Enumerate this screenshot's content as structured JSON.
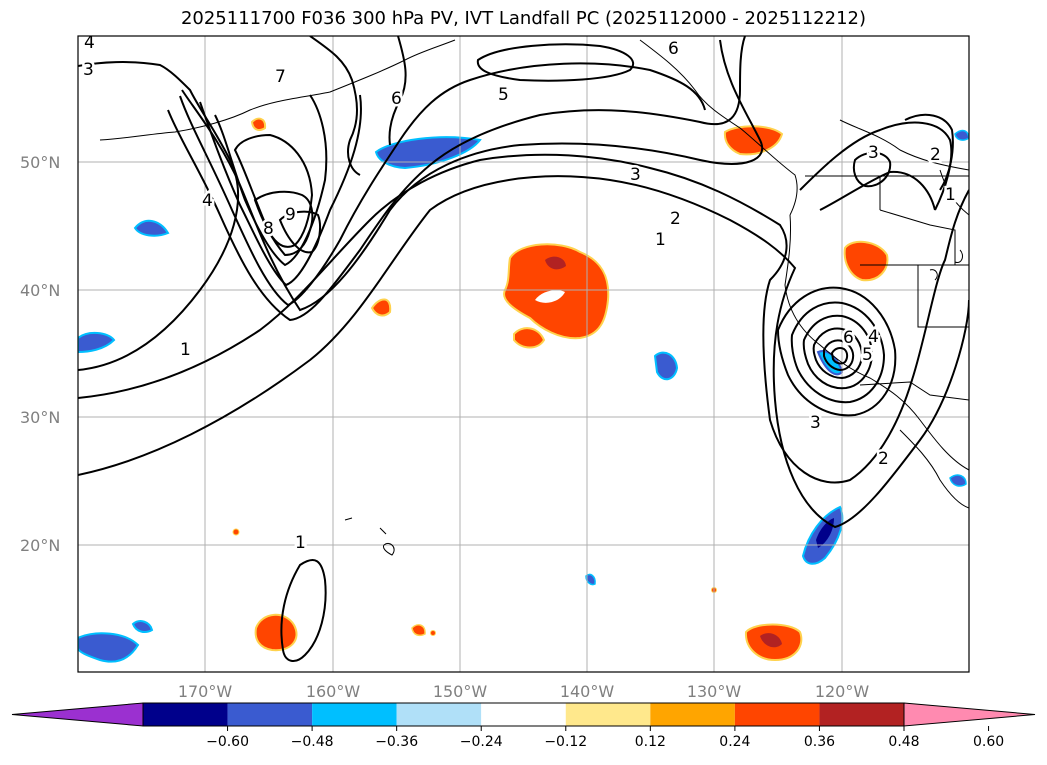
{
  "title": "2025111700 F036 300 hPa PV, IVT Landfall PC (2025112000 - 2025112212)",
  "lat_labels": [
    "50°N",
    "40°N",
    "30°N",
    "20°N"
  ],
  "lon_labels": [
    "170°W",
    "160°W",
    "150°W",
    "140°W",
    "130°W",
    "120°W"
  ],
  "contour_labels": [
    "4",
    "3",
    "7",
    "6",
    "5",
    "6",
    "8",
    "9",
    "4",
    "1",
    "3",
    "2",
    "1",
    "3",
    "2",
    "1",
    "6",
    "5",
    "4",
    "3",
    "2",
    "1"
  ],
  "colorbar": {
    "ticks": [
      "−0.60",
      "−0.48",
      "−0.36",
      "−0.24",
      "−0.12",
      "0.12",
      "0.24",
      "0.36",
      "0.48",
      "0.60"
    ],
    "colors": [
      "#9b30d0",
      "#00008b",
      "#3a5bd0",
      "#00bfff",
      "#b0e0f8",
      "#ffffff",
      "#ffe88c",
      "#ffa500",
      "#ff4500",
      "#b22222",
      "#ff8ab0"
    ]
  },
  "chart_data": {
    "type": "map",
    "projection": "lat-lon",
    "lon_range": [
      -180,
      -110
    ],
    "lat_range": [
      10,
      60
    ],
    "grid": true,
    "fields": [
      "300 hPa PV (contours)",
      "IVT Landfall PC (shaded)"
    ]
  }
}
